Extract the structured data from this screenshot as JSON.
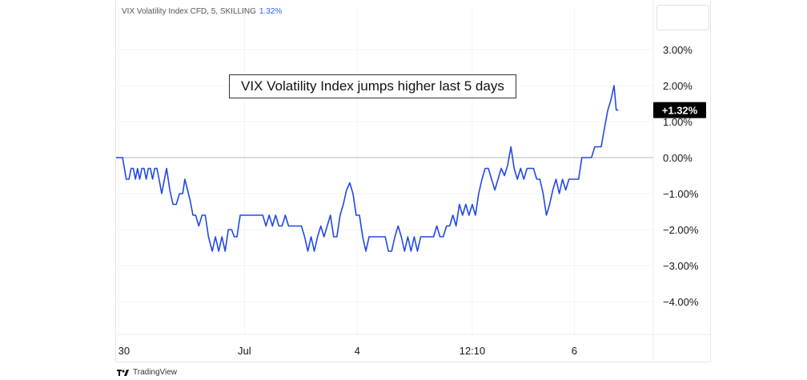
{
  "legend": {
    "symbol": "VIX Volatility Index CFD, 5, SKILLING",
    "value": "1.32%"
  },
  "annotation": "VIX Volatility Index jumps higher last 5 days",
  "brand": {
    "name": "TradingView",
    "icon": "tradingview-logo-icon"
  },
  "colors": {
    "line": "#2148e8",
    "zero_line": "#b2b5be",
    "grid": "#f0f3fa",
    "last_label_bg": "#000000"
  },
  "chart_data": {
    "type": "line",
    "ylim": [
      -5,
      4.2
    ],
    "xlim": [
      0,
      1000
    ],
    "grid": true,
    "y_ticks": [
      {
        "value": 3,
        "label": "3.00%"
      },
      {
        "value": 2,
        "label": "2.00%"
      },
      {
        "value": 1,
        "label": "1.00%"
      },
      {
        "value": 0,
        "label": "0.00%"
      },
      {
        "value": -1,
        "label": "−1.00%"
      },
      {
        "value": -2,
        "label": "−2.00%"
      },
      {
        "value": -3,
        "label": "−3.00%"
      },
      {
        "value": -4,
        "label": "−4.00%"
      }
    ],
    "x_ticks": [
      {
        "value": 4,
        "label": "30"
      },
      {
        "value": 239,
        "label": "Jul"
      },
      {
        "value": 449,
        "label": "4"
      },
      {
        "value": 663,
        "label": "12:10"
      },
      {
        "value": 853,
        "label": "6"
      }
    ],
    "last_value_label": "+1.32%",
    "last_value": 1.32,
    "series": [
      {
        "values": [
          [
            0,
            0
          ],
          [
            12,
            0
          ],
          [
            19,
            -0.6
          ],
          [
            24,
            -0.6
          ],
          [
            28,
            -0.3
          ],
          [
            32,
            -0.3
          ],
          [
            36,
            -0.6
          ],
          [
            40,
            -0.3
          ],
          [
            44,
            -0.6
          ],
          [
            48,
            -0.3
          ],
          [
            52,
            -0.3
          ],
          [
            56,
            -0.6
          ],
          [
            60,
            -0.3
          ],
          [
            64,
            -0.3
          ],
          [
            68,
            -0.6
          ],
          [
            72,
            -0.3
          ],
          [
            76,
            -0.3
          ],
          [
            80,
            -0.6
          ],
          [
            85,
            -1
          ],
          [
            90,
            -0.6
          ],
          [
            94,
            -0.3
          ],
          [
            100,
            -0.9
          ],
          [
            106,
            -1.3
          ],
          [
            112,
            -1.3
          ],
          [
            118,
            -1
          ],
          [
            124,
            -1
          ],
          [
            128,
            -0.6
          ],
          [
            133,
            -0.9
          ],
          [
            138,
            -1.2
          ],
          [
            143,
            -1.6
          ],
          [
            148,
            -1.6
          ],
          [
            154,
            -1.9
          ],
          [
            160,
            -1.6
          ],
          [
            166,
            -1.6
          ],
          [
            172,
            -2.2
          ],
          [
            179,
            -2.6
          ],
          [
            185,
            -2.2
          ],
          [
            191,
            -2.6
          ],
          [
            197,
            -2.2
          ],
          [
            203,
            -2.6
          ],
          [
            209,
            -2
          ],
          [
            215,
            -2
          ],
          [
            220,
            -2.2
          ],
          [
            225,
            -2.2
          ],
          [
            231,
            -1.6
          ],
          [
            237,
            -1.6
          ],
          [
            243,
            -1.6
          ],
          [
            249,
            -1.6
          ],
          [
            255,
            -1.6
          ],
          [
            261,
            -1.6
          ],
          [
            267,
            -1.6
          ],
          [
            273,
            -1.6
          ],
          [
            279,
            -1.9
          ],
          [
            285,
            -1.6
          ],
          [
            291,
            -1.9
          ],
          [
            297,
            -1.6
          ],
          [
            303,
            -1.9
          ],
          [
            309,
            -1.9
          ],
          [
            315,
            -1.6
          ],
          [
            321,
            -1.9
          ],
          [
            327,
            -1.9
          ],
          [
            333,
            -1.9
          ],
          [
            339,
            -1.9
          ],
          [
            345,
            -1.9
          ],
          [
            351,
            -2.2
          ],
          [
            357,
            -2.6
          ],
          [
            363,
            -2.2
          ],
          [
            369,
            -2.6
          ],
          [
            375,
            -2.2
          ],
          [
            381,
            -1.9
          ],
          [
            387,
            -2.2
          ],
          [
            393,
            -1.9
          ],
          [
            399,
            -1.6
          ],
          [
            405,
            -2.2
          ],
          [
            411,
            -2.2
          ],
          [
            417,
            -1.6
          ],
          [
            423,
            -1.3
          ],
          [
            429,
            -0.9
          ],
          [
            435,
            -0.7
          ],
          [
            441,
            -1
          ],
          [
            447,
            -1.6
          ],
          [
            453,
            -1.6
          ],
          [
            459,
            -2.2
          ],
          [
            465,
            -2.6
          ],
          [
            471,
            -2.2
          ],
          [
            477,
            -2.2
          ],
          [
            483,
            -2.2
          ],
          [
            489,
            -2.2
          ],
          [
            495,
            -2.2
          ],
          [
            501,
            -2.2
          ],
          [
            507,
            -2.6
          ],
          [
            513,
            -2.6
          ],
          [
            519,
            -2.2
          ],
          [
            525,
            -1.9
          ],
          [
            531,
            -2.2
          ],
          [
            537,
            -2.6
          ],
          [
            543,
            -2.2
          ],
          [
            549,
            -2.6
          ],
          [
            555,
            -2.2
          ],
          [
            561,
            -2.6
          ],
          [
            567,
            -2.2
          ],
          [
            573,
            -2.2
          ],
          [
            579,
            -2.2
          ],
          [
            585,
            -2.2
          ],
          [
            591,
            -2.2
          ],
          [
            597,
            -1.9
          ],
          [
            603,
            -2.2
          ],
          [
            609,
            -2.2
          ],
          [
            615,
            -1.9
          ],
          [
            621,
            -1.9
          ],
          [
            627,
            -1.6
          ],
          [
            633,
            -1.9
          ],
          [
            639,
            -1.3
          ],
          [
            645,
            -1.6
          ],
          [
            651,
            -1.3
          ],
          [
            657,
            -1.6
          ],
          [
            663,
            -1.3
          ],
          [
            669,
            -1.6
          ],
          [
            675,
            -1
          ],
          [
            681,
            -0.6
          ],
          [
            687,
            -0.3
          ],
          [
            693,
            -0.3
          ],
          [
            699,
            -0.6
          ],
          [
            705,
            -0.9
          ],
          [
            711,
            -0.6
          ],
          [
            717,
            -0.3
          ],
          [
            723,
            -0.5
          ],
          [
            729,
            -0.2
          ],
          [
            735,
            0.3
          ],
          [
            741,
            -0.3
          ],
          [
            747,
            -0.6
          ],
          [
            753,
            -0.3
          ],
          [
            759,
            -0.6
          ],
          [
            765,
            -0.3
          ],
          [
            771,
            -0.3
          ],
          [
            777,
            -0.3
          ],
          [
            783,
            -0.6
          ],
          [
            789,
            -0.6
          ],
          [
            795,
            -1
          ],
          [
            801,
            -1.6
          ],
          [
            807,
            -1.3
          ],
          [
            813,
            -0.9
          ],
          [
            819,
            -0.6
          ],
          [
            825,
            -1
          ],
          [
            831,
            -0.6
          ],
          [
            837,
            -0.9
          ],
          [
            843,
            -0.6
          ],
          [
            849,
            -0.6
          ],
          [
            855,
            -0.6
          ],
          [
            861,
            -0.6
          ],
          [
            867,
            0
          ],
          [
            873,
            0
          ],
          [
            879,
            0
          ],
          [
            885,
            0
          ],
          [
            891,
            0.3
          ],
          [
            897,
            0.3
          ],
          [
            903,
            0.3
          ],
          [
            909,
            0.8
          ],
          [
            915,
            1.3
          ],
          [
            921,
            1.6
          ],
          [
            927,
            2
          ],
          [
            931,
            1.32
          ],
          [
            935,
            1.32
          ]
        ]
      }
    ]
  }
}
